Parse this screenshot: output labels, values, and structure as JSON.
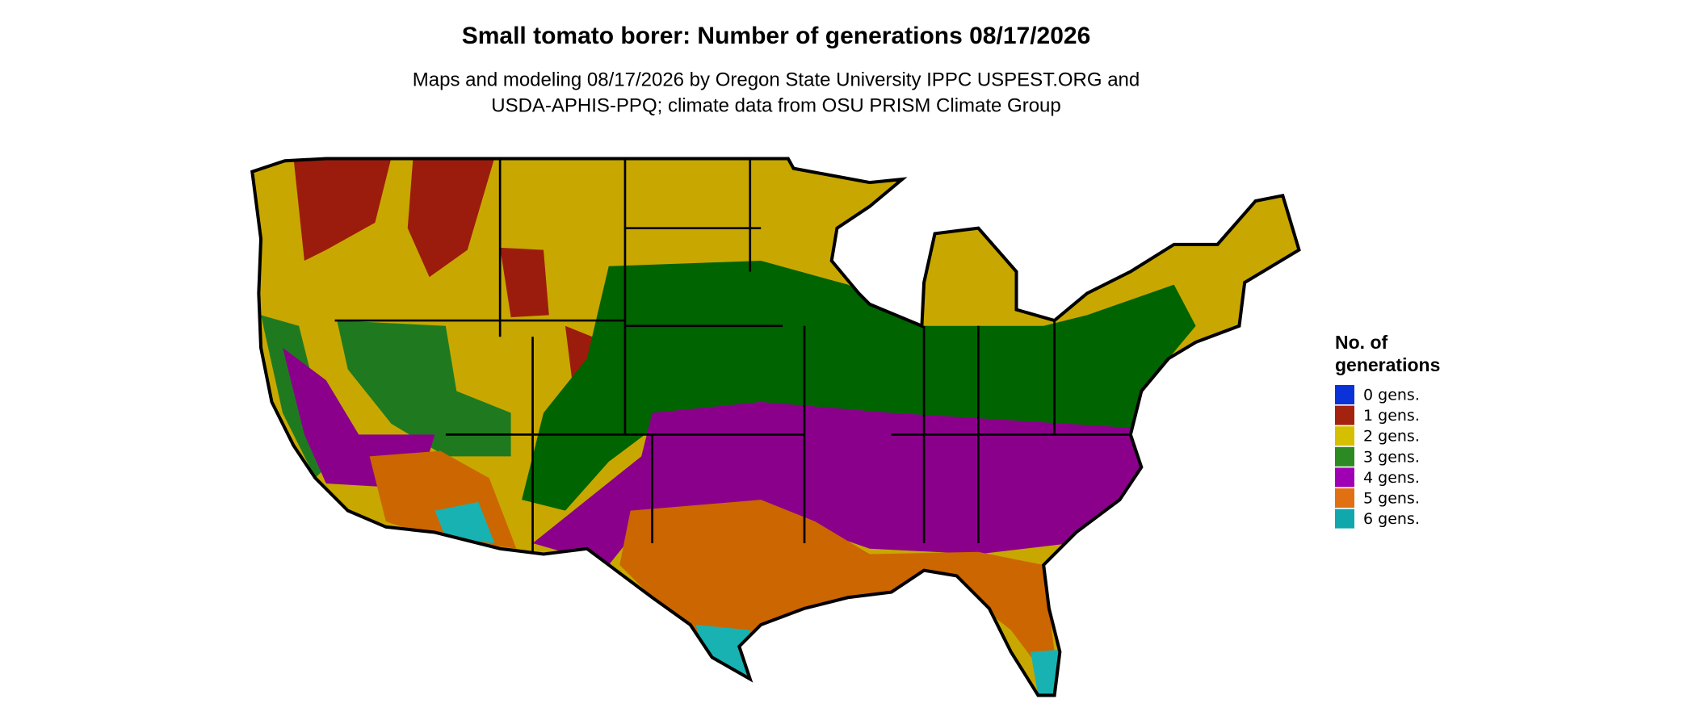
{
  "header": {
    "title": "Small tomato borer: Number of generations 08/17/2026",
    "subtitle": [
      "Maps and modeling 08/17/2026 by Oregon State University IPPC USPEST.ORG and",
      "USDA-APHIS-PPQ; climate data from OSU PRISM Climate Group"
    ]
  },
  "legend": {
    "title": [
      "No. of",
      "generations"
    ],
    "entries": [
      {
        "label": "0 gens.",
        "color": "#0a32d8"
      },
      {
        "label": "1 gens.",
        "color": "#a3230f"
      },
      {
        "label": "2 gens.",
        "color": "#d4c000"
      },
      {
        "label": "3 gens.",
        "color": "#2c8a22"
      },
      {
        "label": "4 gens.",
        "color": "#a000b4"
      },
      {
        "label": "5 gens.",
        "color": "#e07012"
      },
      {
        "label": "6 gens.",
        "color": "#10a8ac"
      }
    ]
  }
}
